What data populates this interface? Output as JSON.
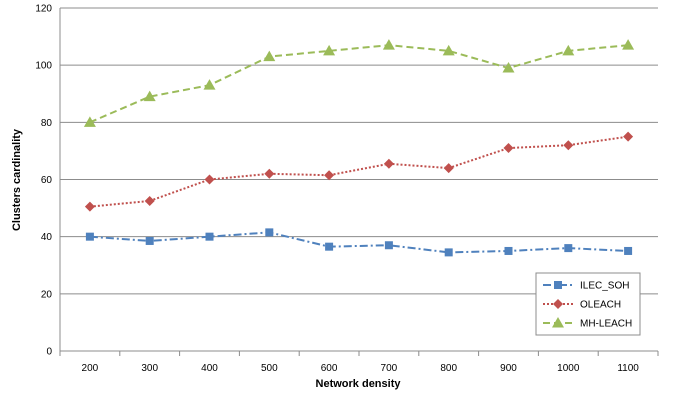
{
  "chart_data": {
    "type": "line",
    "title": "",
    "xlabel": "Network density",
    "ylabel": "Clusters cardinality",
    "categories": [
      "200",
      "300",
      "400",
      "500",
      "600",
      "700",
      "800",
      "900",
      "1000",
      "1100"
    ],
    "ylim": [
      0,
      120
    ],
    "yticks": [
      "0",
      "20",
      "40",
      "60",
      "80",
      "100",
      "120"
    ],
    "grid": "horizontal",
    "legend_position": "bottom-right",
    "series": [
      {
        "name": "ILEC_SOH",
        "values": [
          40,
          38.5,
          40,
          41.5,
          36.5,
          37,
          34.5,
          35,
          36,
          35
        ],
        "color": "#4f81bd",
        "marker": "square",
        "dash": "dash-dot"
      },
      {
        "name": "OLEACH",
        "values": [
          50.5,
          52.5,
          60,
          62,
          61.5,
          65.5,
          64,
          71,
          72,
          75
        ],
        "color": "#c0504d",
        "marker": "diamond",
        "dash": "dotted"
      },
      {
        "name": "MH-LEACH",
        "values": [
          80,
          89,
          93,
          103,
          105,
          107,
          105,
          99,
          105,
          107
        ],
        "color": "#9bbb59",
        "marker": "triangle",
        "dash": "dashed"
      }
    ]
  }
}
